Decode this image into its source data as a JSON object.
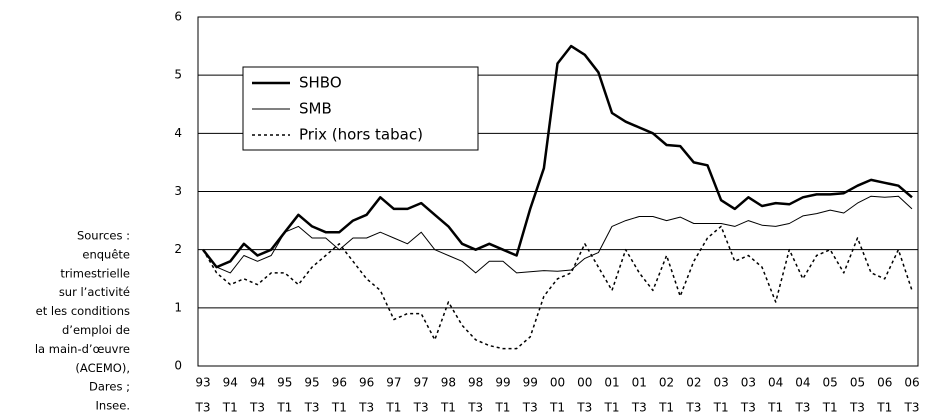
{
  "chart_data": {
    "type": "line",
    "categories": [
      [
        "93",
        "T3"
      ],
      null,
      [
        "94",
        "T1"
      ],
      null,
      [
        "94",
        "T3"
      ],
      null,
      [
        "95",
        "T1"
      ],
      null,
      [
        "95",
        "T3"
      ],
      null,
      [
        "96",
        "T1"
      ],
      null,
      [
        "96",
        "T3"
      ],
      null,
      [
        "97",
        "T1"
      ],
      null,
      [
        "97",
        "T3"
      ],
      null,
      [
        "98",
        "T1"
      ],
      null,
      [
        "98",
        "T3"
      ],
      null,
      [
        "99",
        "T1"
      ],
      null,
      [
        "99",
        "T3"
      ],
      null,
      [
        "00",
        "T1"
      ],
      null,
      [
        "00",
        "T3"
      ],
      null,
      [
        "01",
        "T1"
      ],
      null,
      [
        "01",
        "T3"
      ],
      null,
      [
        "02",
        "T1"
      ],
      null,
      [
        "02",
        "T3"
      ],
      null,
      [
        "03",
        "T1"
      ],
      null,
      [
        "03",
        "T3"
      ],
      null,
      [
        "04",
        "T1"
      ],
      null,
      [
        "04",
        "T3"
      ],
      null,
      [
        "05",
        "T1"
      ],
      null,
      [
        "05",
        "T3"
      ],
      null,
      [
        "06",
        "T1"
      ],
      null,
      [
        "06",
        "T3"
      ]
    ],
    "series": [
      {
        "name": "SHBO",
        "color": "#000000",
        "line_style": "thick",
        "values": [
          2.0,
          1.7,
          1.8,
          2.1,
          1.9,
          2.0,
          2.3,
          2.6,
          2.4,
          2.3,
          2.3,
          2.5,
          2.6,
          2.9,
          2.7,
          2.7,
          2.8,
          2.6,
          2.4,
          2.1,
          2.0,
          2.1,
          2.0,
          1.9,
          2.7,
          3.4,
          5.2,
          5.5,
          5.35,
          5.05,
          4.35,
          4.2,
          4.1,
          4.0,
          3.8,
          3.78,
          3.5,
          3.45,
          2.85,
          2.7,
          2.9,
          2.75,
          2.8,
          2.78,
          2.9,
          2.95,
          2.95,
          2.97,
          3.1,
          3.2,
          3.15,
          3.1,
          2.9
        ]
      },
      {
        "name": "SMB",
        "color": "#000000",
        "line_style": "thin",
        "values": [
          2.0,
          1.7,
          1.6,
          1.9,
          1.8,
          1.9,
          2.3,
          2.4,
          2.2,
          2.2,
          2.0,
          2.2,
          2.2,
          2.3,
          2.2,
          2.1,
          2.3,
          2.0,
          1.9,
          1.8,
          1.6,
          1.8,
          1.8,
          1.6,
          1.62,
          1.64,
          1.63,
          1.65,
          1.85,
          1.95,
          2.4,
          2.5,
          2.57,
          2.57,
          2.5,
          2.56,
          2.45,
          2.45,
          2.45,
          2.4,
          2.5,
          2.42,
          2.4,
          2.45,
          2.58,
          2.62,
          2.68,
          2.63,
          2.8,
          2.92,
          2.9,
          2.92,
          2.7
        ]
      },
      {
        "name": "Prix (hors tabac)",
        "color": "#000000",
        "line_style": "dotted",
        "values": [
          2.0,
          1.6,
          1.4,
          1.5,
          1.4,
          1.6,
          1.6,
          1.4,
          1.7,
          1.9,
          2.1,
          1.8,
          1.5,
          1.3,
          0.8,
          0.9,
          0.9,
          0.45,
          1.1,
          0.7,
          0.45,
          0.35,
          0.3,
          0.3,
          0.5,
          1.2,
          1.5,
          1.6,
          2.1,
          1.7,
          1.3,
          2.0,
          1.6,
          1.3,
          1.9,
          1.2,
          1.8,
          2.2,
          2.4,
          1.8,
          1.9,
          1.7,
          1.1,
          2.0,
          1.5,
          1.9,
          2.0,
          1.6,
          2.2,
          1.6,
          1.5,
          2.0,
          1.3
        ]
      }
    ],
    "ylim": [
      0,
      6
    ],
    "yticks": [
      0,
      1,
      2,
      3,
      4,
      5,
      6
    ],
    "grid": true,
    "legend": "upper left",
    "source": [
      "Sources :",
      "enquête",
      "trimestrielle",
      "sur l’activité",
      "et les conditions",
      "d’emploi de",
      "la main-d’œuvre",
      "(ACEMO),",
      "Dares ;",
      "Insee."
    ]
  }
}
